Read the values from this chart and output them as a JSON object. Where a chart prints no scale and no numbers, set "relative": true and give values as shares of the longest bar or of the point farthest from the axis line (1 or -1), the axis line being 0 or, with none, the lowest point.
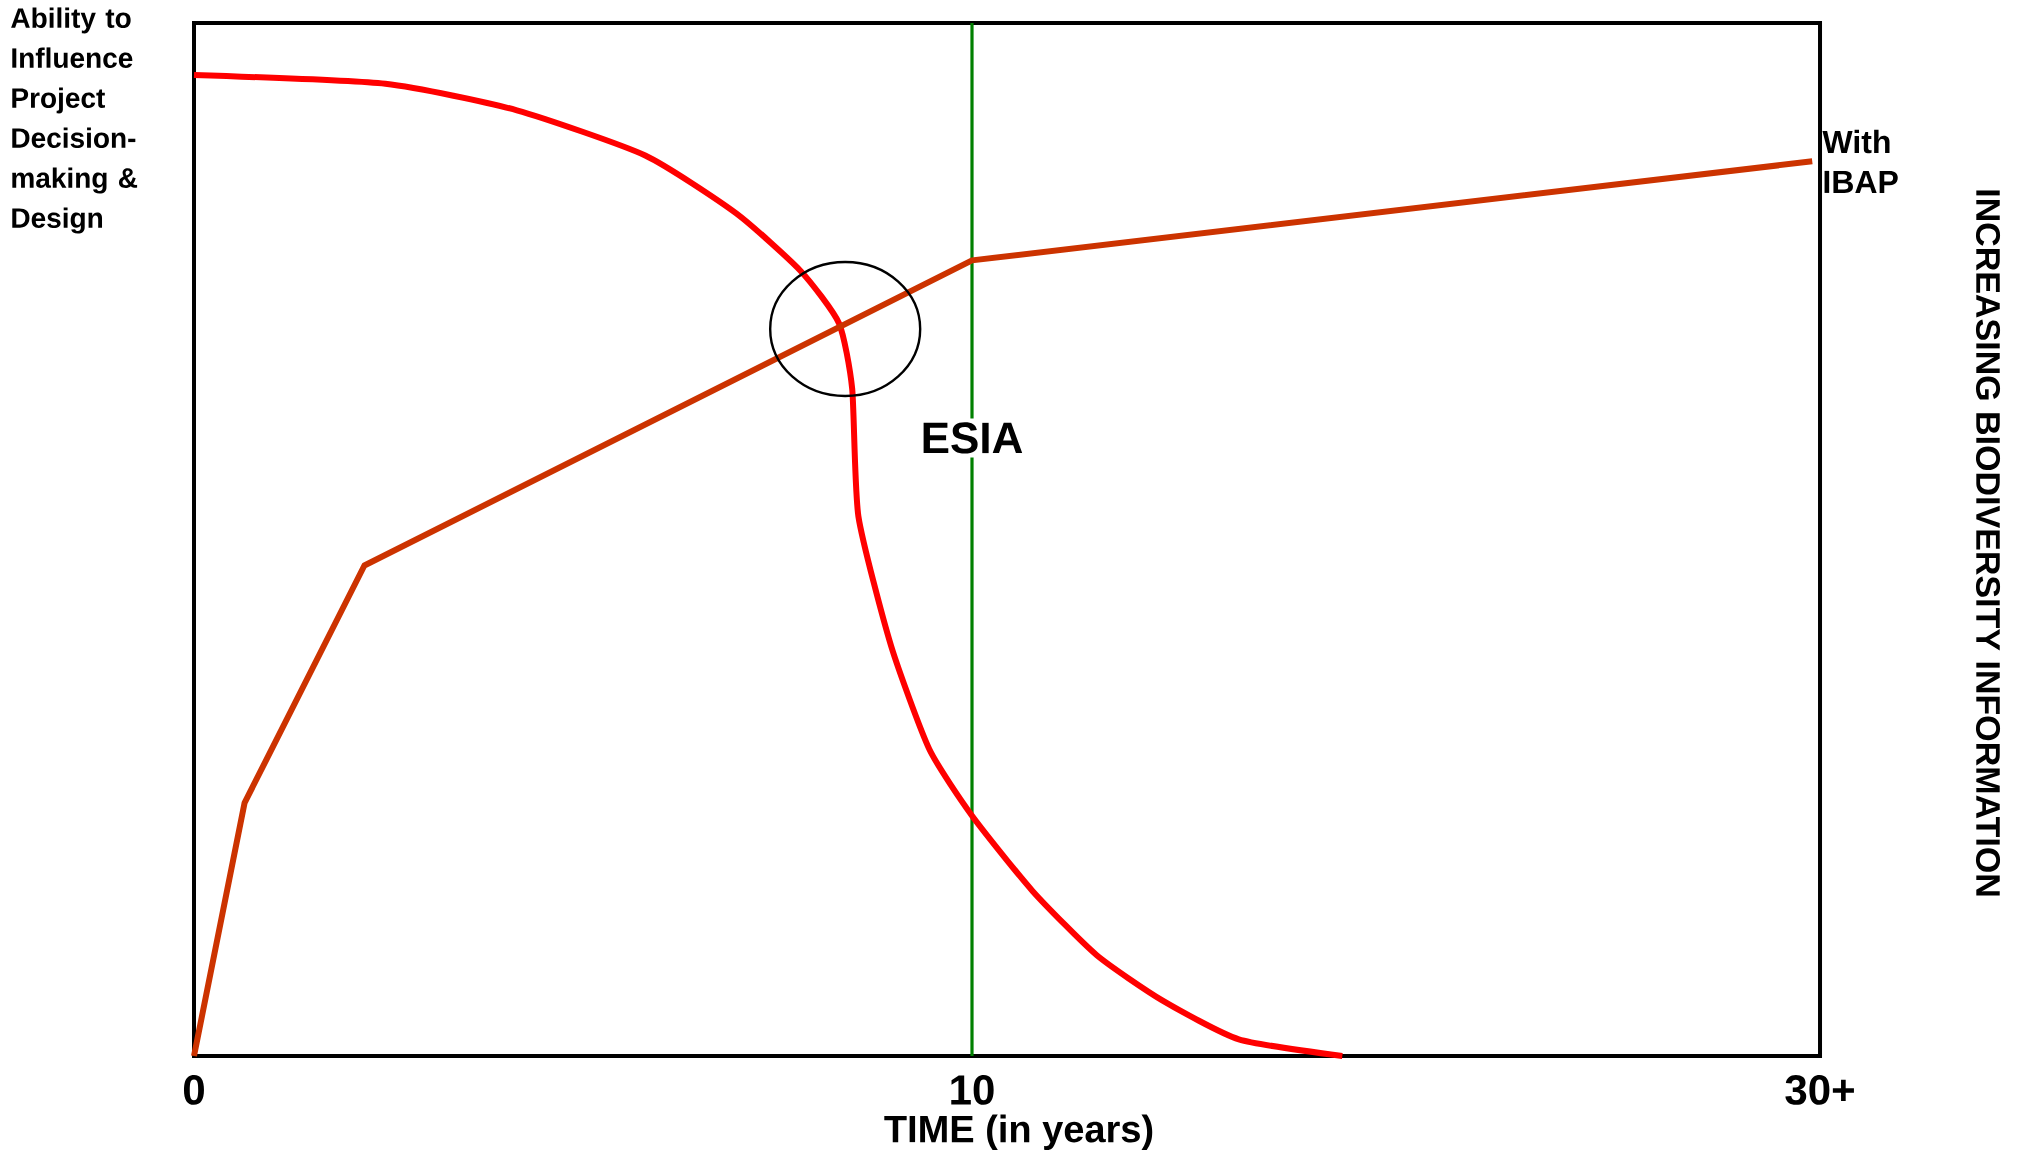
{
  "chart_data": {
    "type": "line",
    "relative": true,
    "xlabel": "TIME (in years)",
    "ylabel": "Ability to Influence Project Decision-making & Design",
    "y2label": "INCREASING BIODIVERSITY INFORMATION",
    "xlim": [
      0,
      20.9
    ],
    "xticks": [
      0,
      10,
      {
        "value": 20.9,
        "label": "30+"
      }
    ],
    "marker": "none",
    "series": [
      {
        "color": "#ff0000",
        "x": [
          0,
          2.46,
          4.15,
          5.8,
          6.97,
          7.8,
          8.29,
          8.46,
          8.54,
          8.96,
          9.45,
          10,
          10.78,
          11.6,
          12.44,
          13.43,
          14.76
        ],
        "values": [
          1,
          0.991,
          0.964,
          0.918,
          0.859,
          0.8,
          0.747,
          0.68,
          0.55,
          0.418,
          0.313,
          0.245,
          0.168,
          0.103,
          0.057,
          0.017,
          0
        ]
      },
      {
        "name": "With IBAP",
        "color": "#cc3300",
        "x": [
          0,
          0.65,
          2.19,
          10,
          20.8
        ],
        "values": [
          0,
          0.258,
          0.5,
          0.811,
          0.912
        ]
      }
    ],
    "ref_lines": [
      {
        "axis": "x",
        "value": 10,
        "label": "ESIA",
        "color": "#008000"
      }
    ]
  }
}
